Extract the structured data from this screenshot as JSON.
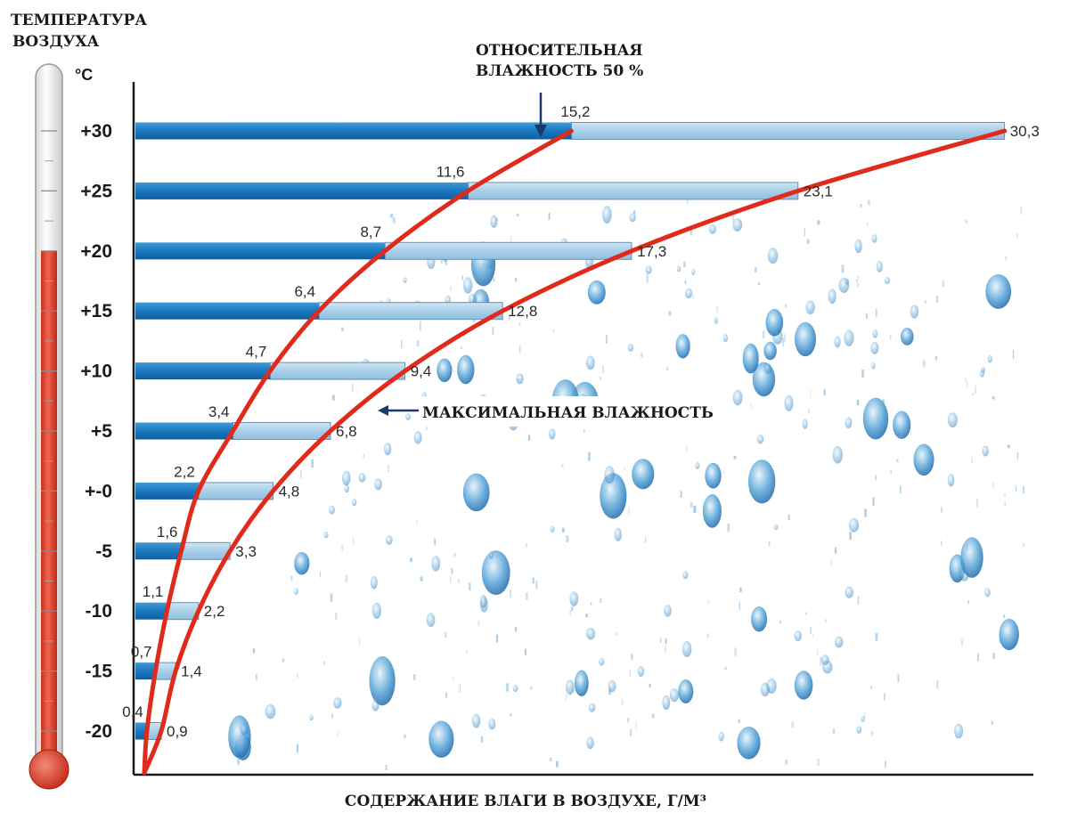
{
  "chart_data": {
    "type": "bar",
    "orientation": "horizontal",
    "ylabel_line1": "ТЕМПЕРАТУРА",
    "ylabel_line2": "ВОЗДУХА",
    "yunit": "°C",
    "xlabel": "СОДЕРЖАНИЕ ВЛАГИ В ВОЗДУХЕ, Г/М³",
    "categories": [
      "+30",
      "+25",
      "+20",
      "+15",
      "+10",
      "+5",
      "+-0",
      "-5",
      "-10",
      "-15",
      "-20"
    ],
    "temperatures": [
      30,
      25,
      20,
      15,
      10,
      5,
      0,
      -5,
      -10,
      -15,
      -20
    ],
    "series": [
      {
        "name": "ОТНОСИТЕЛЬНАЯ ВЛАЖНОСТЬ 50 %",
        "values": [
          15.2,
          11.6,
          8.7,
          6.4,
          4.7,
          3.4,
          2.2,
          1.6,
          1.1,
          0.7,
          0.4
        ],
        "labels": [
          "15,2",
          "11,6",
          "8,7",
          "6,4",
          "4,7",
          "3,4",
          "2,2",
          "1,6",
          "1,1",
          "0,7",
          "0,4"
        ]
      },
      {
        "name": "МАКСИМАЛЬНАЯ ВЛАЖНОСТЬ",
        "values": [
          30.3,
          23.1,
          17.3,
          12.8,
          9.4,
          6.8,
          4.8,
          3.3,
          2.2,
          1.4,
          0.9
        ],
        "labels": [
          "30,3",
          "23,1",
          "17,3",
          "12,8",
          "9,4",
          "6,8",
          "4,8",
          "3,3",
          "2,2",
          "1,4",
          "0,9"
        ]
      }
    ],
    "xlim": [
      0,
      31
    ],
    "colors": {
      "bar_dark": "#1a78bf",
      "bar_light": "#a9cfe8",
      "curve": "#e02a1c",
      "thermo_red": "#e8493a",
      "drop": "#2a7fc0"
    }
  }
}
